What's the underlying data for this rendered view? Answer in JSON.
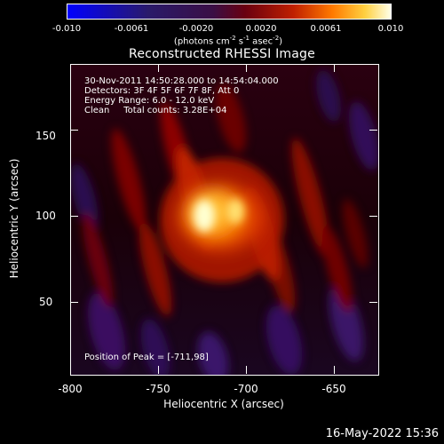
{
  "colorbar": {
    "ticks": [
      "-0.010",
      "-0.0061",
      "-0.0020",
      "0.0020",
      "0.0061",
      "0.010"
    ],
    "unit_main": "(photons cm",
    "unit_exp1": "-2",
    "unit_mid": " s",
    "unit_exp2": "-1",
    "unit_end": " asec",
    "unit_exp3": "-2",
    "unit_close": ")"
  },
  "title": "Reconstructed RHESSI Image",
  "info": {
    "line1": "30-Nov-2011 14:50:28.000 to 14:54:04.000",
    "line2": "Detectors: 3F 4F 5F 6F 7F 8F, Att 0",
    "line3": "Energy Range: 6.0 - 12.0 keV",
    "line4": "Clean     Total counts: 3.28E+04"
  },
  "peak_label": "Position of Peak = [-711,98]",
  "axes": {
    "xlabel": "Heliocentric X (arcsec)",
    "ylabel": "Heliocentric Y (arcsec)",
    "xticks": [
      "-800",
      "-750",
      "-700",
      "-650"
    ],
    "yticks": [
      "50",
      "100",
      "150"
    ]
  },
  "footer_date": "16-May-2022 15:36"
}
